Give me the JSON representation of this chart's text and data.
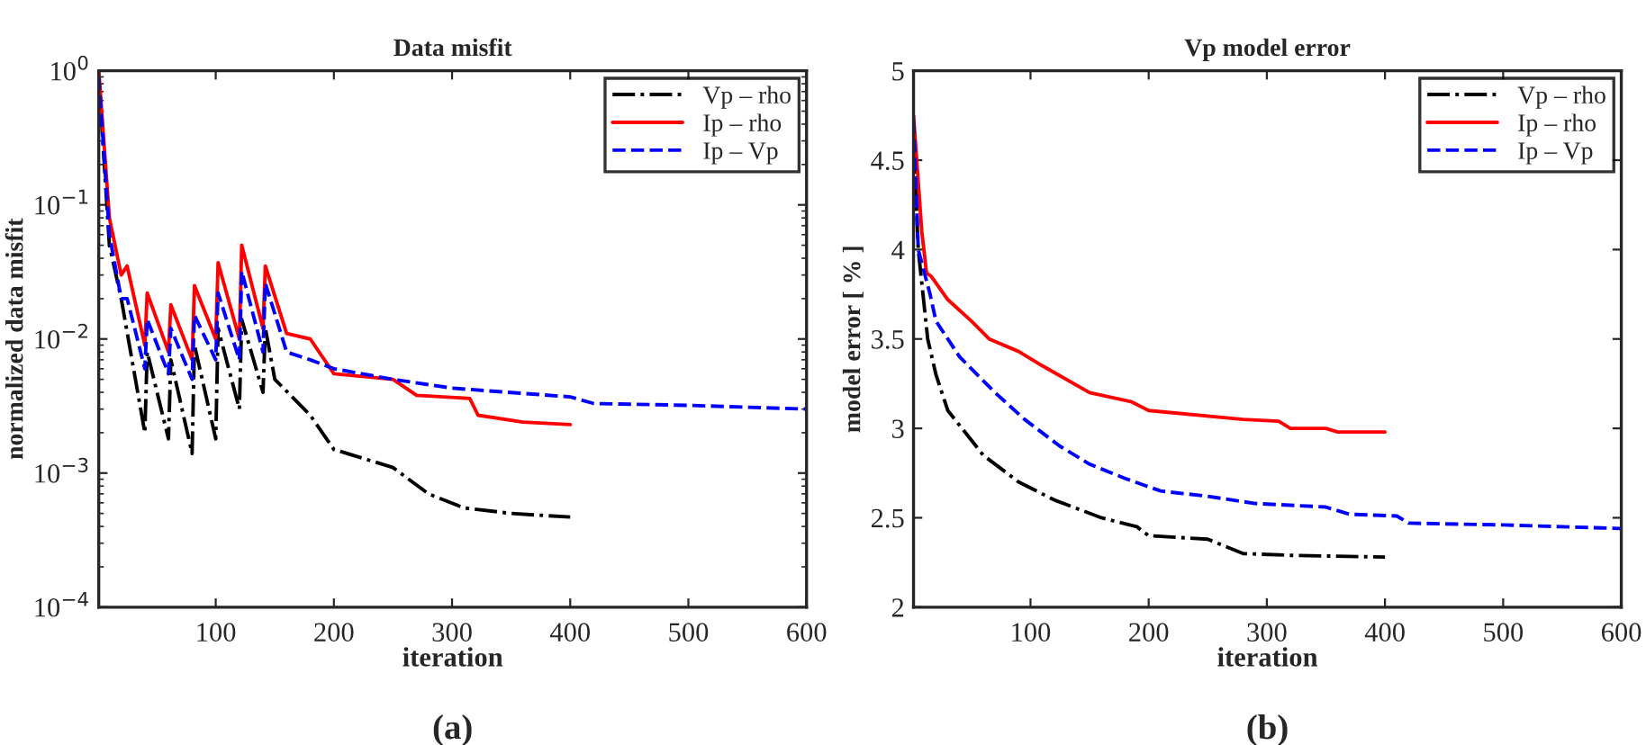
{
  "chart_data": [
    {
      "type": "line",
      "title": "Data misfit",
      "xlabel": "iteration",
      "ylabel": "normalized data misfit",
      "log": "y",
      "xlim": [
        1,
        600
      ],
      "xticks": [
        100,
        200,
        300,
        400,
        500,
        600
      ],
      "ylim": [
        0.0001,
        1
      ],
      "yticks": [
        {
          "value": 0.0001,
          "label": "10$^{−4}$"
        },
        {
          "value": 0.001,
          "label": "10$^{−3}$"
        },
        {
          "value": 0.01,
          "label": "10$^{−2}$"
        },
        {
          "value": 0.1,
          "label": "10$^{−1}$"
        },
        {
          "value": 1,
          "label": "10$^{0}$"
        }
      ],
      "legend": "top right",
      "grid": false,
      "annotations": [
        "(a)"
      ],
      "series": [
        {
          "name": "Vp – rho",
          "color": "#000000",
          "line_style": "dashdot",
          "x": [
            1,
            10,
            20,
            40,
            42,
            60,
            62,
            80,
            82,
            100,
            102,
            120,
            122,
            140,
            142,
            150,
            180,
            200,
            250,
            280,
            310,
            350,
            400
          ],
          "values": [
            0.9,
            0.05,
            0.02,
            0.002,
            0.008,
            0.0018,
            0.007,
            0.0014,
            0.009,
            0.0018,
            0.012,
            0.003,
            0.014,
            0.004,
            0.012,
            0.005,
            0.0027,
            0.0015,
            0.0011,
            0.0007,
            0.00055,
            0.0005,
            0.00047
          ]
        },
        {
          "name": "Ip – rho",
          "color": "#ff0000",
          "line_style": "solid",
          "x": [
            1,
            10,
            20,
            25,
            40,
            42,
            60,
            62,
            80,
            82,
            100,
            102,
            120,
            122,
            140,
            142,
            160,
            180,
            200,
            250,
            270,
            315,
            322,
            360,
            400
          ],
          "values": [
            1,
            0.08,
            0.03,
            0.035,
            0.009,
            0.022,
            0.008,
            0.018,
            0.007,
            0.025,
            0.01,
            0.037,
            0.01,
            0.05,
            0.012,
            0.035,
            0.011,
            0.01,
            0.0055,
            0.005,
            0.0038,
            0.0036,
            0.0027,
            0.0024,
            0.0023
          ]
        },
        {
          "name": "Ip – Vp",
          "color": "#0000ff",
          "line_style": "dashed",
          "x": [
            1,
            10,
            20,
            25,
            40,
            42,
            60,
            62,
            80,
            82,
            100,
            102,
            120,
            122,
            140,
            142,
            160,
            180,
            200,
            250,
            300,
            400,
            420,
            500,
            600
          ],
          "values": [
            0.9,
            0.06,
            0.02,
            0.02,
            0.006,
            0.014,
            0.0055,
            0.012,
            0.005,
            0.015,
            0.007,
            0.022,
            0.007,
            0.032,
            0.008,
            0.026,
            0.008,
            0.007,
            0.006,
            0.005,
            0.0043,
            0.0037,
            0.0033,
            0.0032,
            0.003
          ]
        }
      ]
    },
    {
      "type": "line",
      "title": "Vp model error",
      "xlabel": "iteration",
      "ylabel": "model error [ % ]",
      "xlim": [
        1,
        600
      ],
      "xticks": [
        100,
        200,
        300,
        400,
        500,
        600
      ],
      "ylim": [
        2,
        5
      ],
      "yticks": [
        2,
        2.5,
        3,
        3.5,
        4,
        4.5,
        5
      ],
      "legend": "top right",
      "grid": false,
      "annotations": [
        "(b)"
      ],
      "series": [
        {
          "name": "Vp – rho",
          "color": "#000000",
          "line_style": "dashdot",
          "x": [
            1,
            5,
            13,
            20,
            30,
            60,
            90,
            120,
            160,
            190,
            200,
            250,
            280,
            320,
            400
          ],
          "values": [
            4.6,
            4.0,
            3.5,
            3.3,
            3.1,
            2.85,
            2.7,
            2.6,
            2.5,
            2.45,
            2.4,
            2.38,
            2.3,
            2.29,
            2.28
          ]
        },
        {
          "name": "Ip – rho",
          "color": "#ff0000",
          "line_style": "solid",
          "x": [
            1,
            8,
            12,
            16,
            30,
            50,
            65,
            90,
            110,
            150,
            185,
            200,
            280,
            310,
            320,
            350,
            360,
            400
          ],
          "values": [
            4.75,
            4.1,
            3.87,
            3.85,
            3.72,
            3.6,
            3.5,
            3.43,
            3.35,
            3.2,
            3.15,
            3.1,
            3.05,
            3.04,
            3.0,
            3.0,
            2.98,
            2.98
          ]
        },
        {
          "name": "Ip – Vp",
          "color": "#0000ff",
          "line_style": "dashed",
          "x": [
            1,
            5,
            15,
            20,
            40,
            70,
            95,
            125,
            150,
            180,
            210,
            250,
            290,
            350,
            370,
            410,
            420,
            500,
            600
          ],
          "values": [
            4.72,
            4.0,
            3.75,
            3.6,
            3.4,
            3.2,
            3.05,
            2.9,
            2.8,
            2.72,
            2.65,
            2.62,
            2.58,
            2.56,
            2.52,
            2.51,
            2.47,
            2.46,
            2.44
          ]
        }
      ]
    }
  ]
}
